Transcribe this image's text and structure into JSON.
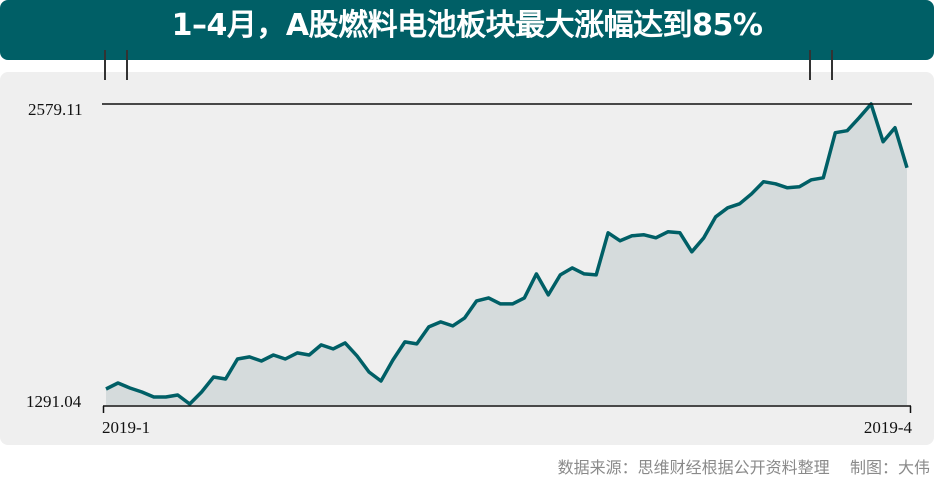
{
  "title": "1–4月，A股燃料电池板块最大涨幅达到85%",
  "source": "数据来源：思维财经根据公开资料整理    制图：大伟",
  "colors": {
    "title_bg": "#005f66",
    "line": "#005f66",
    "area": "#d5dbdc",
    "panel": "#efefef"
  },
  "chart_data": {
    "type": "area",
    "title": "1–4月，A股燃料电池板块最大涨幅达到85%",
    "x_start_label": "2019-1",
    "x_end_label": "2019-4",
    "y_tick_labels": [
      "1291.04",
      "2579.11"
    ],
    "ylim": [
      1291.04,
      2579.11
    ],
    "grid": false,
    "values": [
      1359.6,
      1385.3,
      1363.9,
      1346.7,
      1325.3,
      1325.3,
      1333.9,
      1295.3,
      1346.7,
      1411.0,
      1402.4,
      1488.1,
      1496.7,
      1479.5,
      1505.2,
      1488.1,
      1513.8,
      1505.2,
      1548.1,
      1530.9,
      1556.6,
      1500.9,
      1432.4,
      1393.9,
      1483.8,
      1560.9,
      1552.4,
      1625.2,
      1646.6,
      1629.5,
      1663.7,
      1736.6,
      1749.4,
      1723.7,
      1723.7,
      1749.4,
      1852.2,
      1762.3,
      1847.9,
      1877.9,
      1852.2,
      1847.9,
      2027.9,
      1993.6,
      2015.0,
      2019.3,
      2006.5,
      2032.2,
      2027.9,
      1946.5,
      2006.5,
      2096.4,
      2135.0,
      2152.1,
      2195.0,
      2246.4,
      2237.8,
      2220.7,
      2224.9,
      2254.9,
      2263.5,
      2456.3,
      2464.9,
      2520.5,
      2579.11,
      2417.7,
      2477.7,
      2306.3
    ]
  }
}
